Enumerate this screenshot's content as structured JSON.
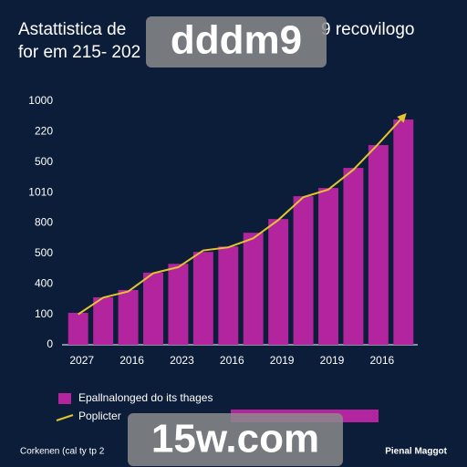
{
  "chart_data": {
    "type": "bar_line",
    "title": "Astattistica de",
    "title_right": "9 recovilogo",
    "subtitle": "for em 215- 202",
    "categories": [
      "2027",
      null,
      "2016",
      null,
      "2023",
      null,
      "2016",
      null,
      "2019",
      null,
      "2019",
      null,
      "2016",
      null
    ],
    "series": [
      {
        "name": "Epallnalonged do its thages",
        "color": "#b3259e",
        "kind": "bar",
        "values": [
          1.05,
          1.56,
          1.8,
          2.37,
          2.66,
          3.05,
          3.23,
          3.68,
          4.13,
          4.88,
          5.15,
          5.81,
          6.56,
          7.4
        ]
      },
      {
        "name": "Poplicter",
        "color": "#e2c431",
        "kind": "line",
        "values": [
          1.0,
          1.55,
          1.75,
          2.35,
          2.55,
          3.1,
          3.2,
          3.5,
          4.1,
          4.85,
          5.1,
          5.75,
          6.6,
          7.5
        ]
      }
    ],
    "ylim": [
      0,
      8
    ],
    "yticks": [
      0,
      {
        "value": 1,
        "label": "100"
      },
      {
        "value": 2,
        "label": "400"
      },
      {
        "value": 3,
        "label": "500"
      },
      {
        "value": 4,
        "label": "800"
      },
      {
        "value": 5,
        "label": "1010"
      },
      {
        "value": 6,
        "label": "500"
      },
      {
        "value": 7,
        "label": "220"
      },
      {
        "value": 8,
        "label": "1000"
      }
    ],
    "grid": false,
    "footer_left": "Corkenen (cal ty tp 2",
    "footer_right": "Pienal Maggot",
    "watermarks": [
      "dddm9",
      "15w.com"
    ]
  }
}
